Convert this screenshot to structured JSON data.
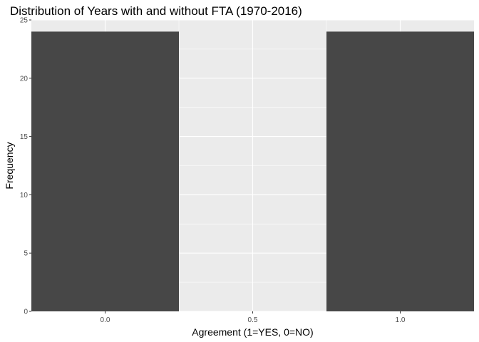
{
  "chart_data": {
    "type": "bar",
    "title": "Distribution of Years with and without FTA (1970-2016)",
    "xlabel": "Agreement (1=YES, 0=NO)",
    "ylabel": "Frequency",
    "x": [
      0,
      1
    ],
    "values": [
      24,
      24
    ],
    "bar_width": 0.5,
    "xlim": [
      -0.25,
      1.25
    ],
    "ylim": [
      0,
      25
    ],
    "xticks": [
      0.0,
      0.5,
      1.0
    ],
    "xtick_labels": [
      "0.0",
      "0.5",
      "1.0"
    ],
    "yticks": [
      0,
      5,
      10,
      15,
      20,
      25
    ],
    "ytick_labels": [
      "0",
      "5",
      "10",
      "15",
      "20",
      "25"
    ],
    "grid": true,
    "legend": "none",
    "colors": {
      "bar": "#474747",
      "panel": "#ebebeb",
      "grid": "#ffffff"
    }
  }
}
